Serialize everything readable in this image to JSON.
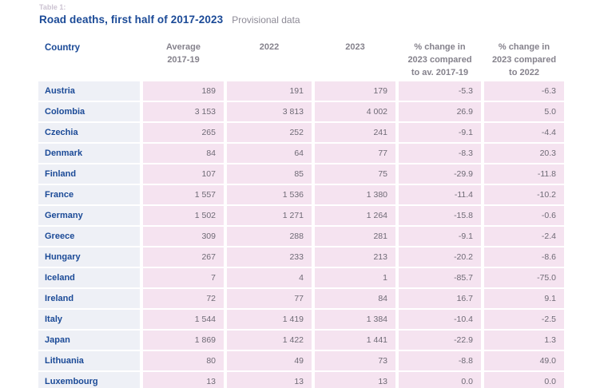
{
  "page": {
    "table_label": "Table 1:",
    "title": "Road deaths, first half of 2017-2023",
    "subtitle": "Provisional data"
  },
  "colors": {
    "title_blue": "#1b4a97",
    "header_gray": "#85828c",
    "value_gray": "#6e6a75",
    "country_cell_bg": "#eef0f6",
    "value_cell_bg": "#f5e3f0",
    "table_label_pink": "#ccc3d2"
  },
  "table": {
    "columns": [
      "Country",
      "Average\n2017-19",
      "2022",
      "2023",
      "% change in\n2023 compared\nto av. 2017-19",
      "% change in\n2023 compared\nto 2022"
    ],
    "rows": [
      {
        "country": "Austria",
        "values": [
          "189",
          "191",
          "179",
          "-5.3",
          "-6.3"
        ]
      },
      {
        "country": "Colombia",
        "values": [
          "3 153",
          "3 813",
          "4 002",
          "26.9",
          "5.0"
        ]
      },
      {
        "country": "Czechia",
        "values": [
          "265",
          "252",
          "241",
          "-9.1",
          "-4.4"
        ]
      },
      {
        "country": "Denmark",
        "values": [
          "84",
          "64",
          "77",
          "-8.3",
          "20.3"
        ]
      },
      {
        "country": "Finland",
        "values": [
          "107",
          "85",
          "75",
          "-29.9",
          "-11.8"
        ]
      },
      {
        "country": "France",
        "values": [
          "1 557",
          "1 536",
          "1 380",
          "-11.4",
          "-10.2"
        ]
      },
      {
        "country": "Germany",
        "values": [
          "1 502",
          "1 271",
          "1 264",
          "-15.8",
          "-0.6"
        ]
      },
      {
        "country": "Greece",
        "values": [
          "309",
          "288",
          "281",
          "-9.1",
          "-2.4"
        ]
      },
      {
        "country": "Hungary",
        "values": [
          "267",
          "233",
          "213",
          "-20.2",
          "-8.6"
        ]
      },
      {
        "country": "Iceland",
        "values": [
          "7",
          "4",
          "1",
          "-85.7",
          "-75.0"
        ]
      },
      {
        "country": "Ireland",
        "values": [
          "72",
          "77",
          "84",
          "16.7",
          "9.1"
        ]
      },
      {
        "country": "Italy",
        "values": [
          "1 544",
          "1 419",
          "1 384",
          "-10.4",
          "-2.5"
        ]
      },
      {
        "country": "Japan",
        "values": [
          "1 869",
          "1 422",
          "1 441",
          "-22.9",
          "1.3"
        ]
      },
      {
        "country": "Lithuania",
        "values": [
          "80",
          "49",
          "73",
          "-8.8",
          "49.0"
        ]
      },
      {
        "country": "Luxembourg",
        "values": [
          "13",
          "13",
          "13",
          "0.0",
          "0.0"
        ]
      }
    ]
  }
}
